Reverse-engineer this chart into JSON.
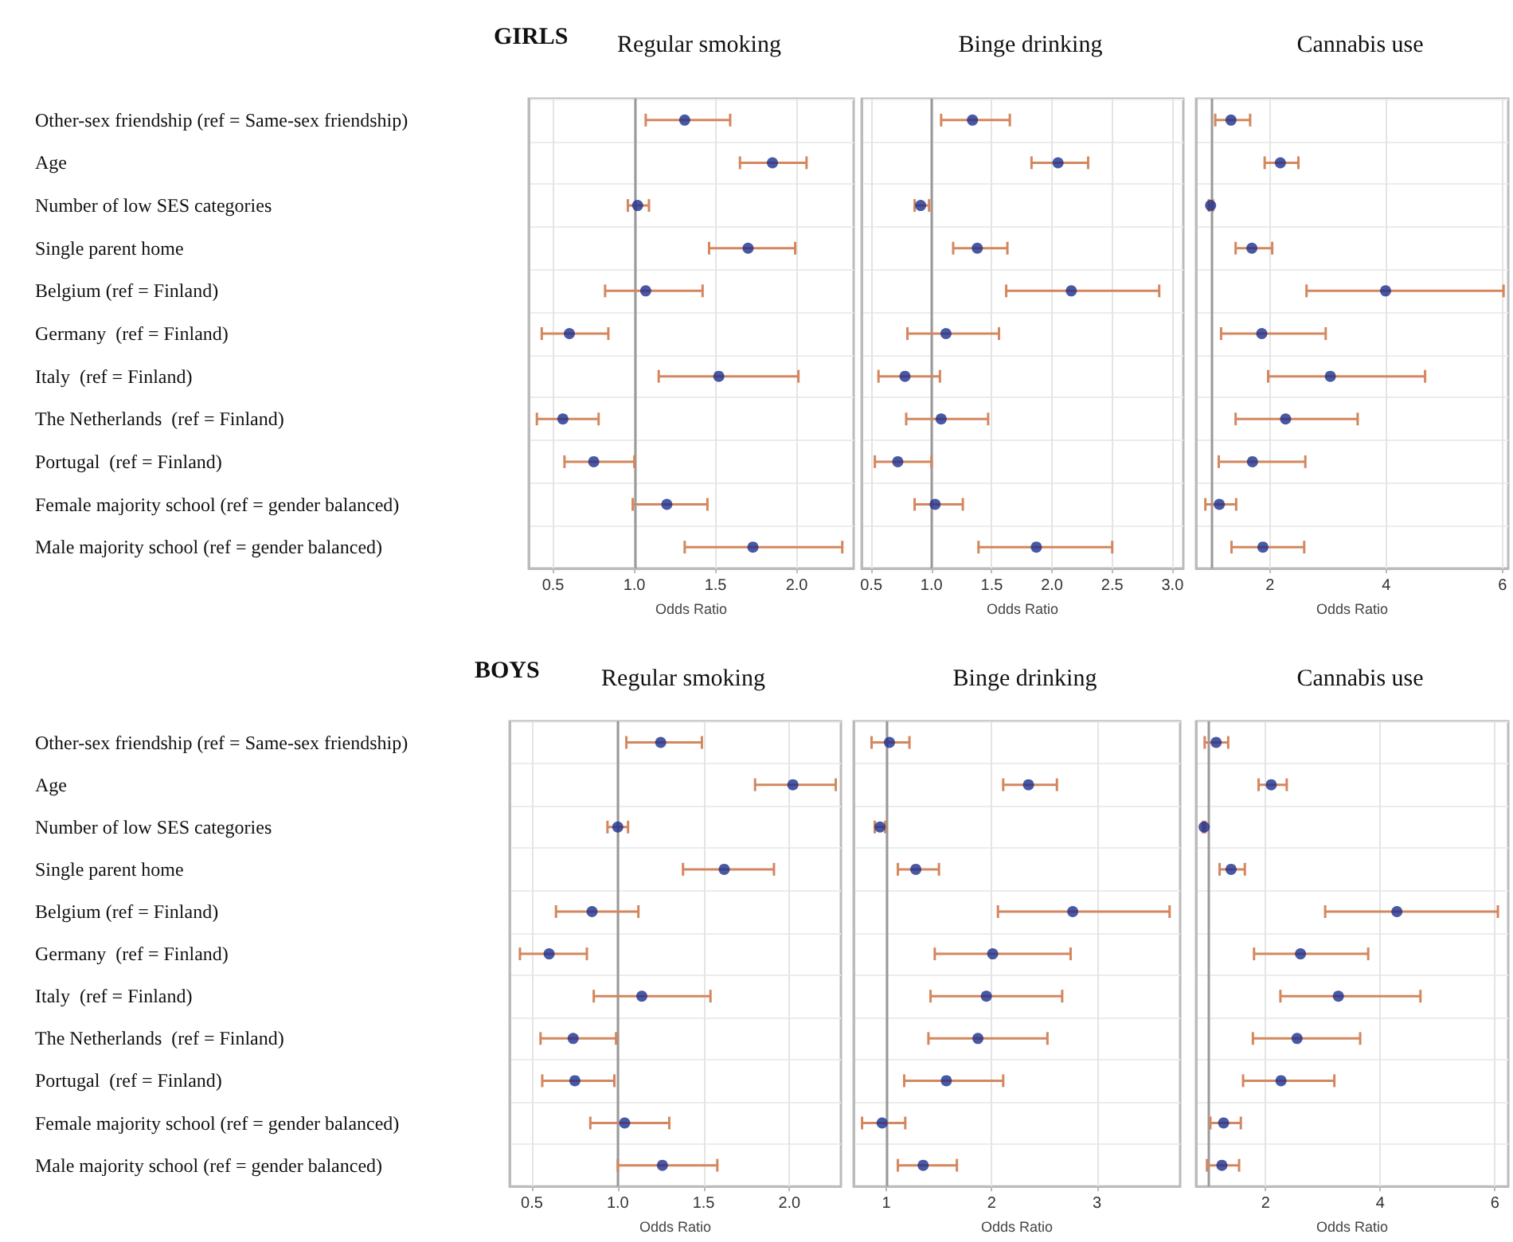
{
  "chart_data": [
    {
      "type": "scatter",
      "orientation": "horizontal",
      "title": "Regular smoking",
      "annotations": [
        "GIRLS"
      ],
      "xlabel": "Odds Ratio",
      "categories": [
        "Other-sex friendship (ref = Same-sex friendship)",
        "Age",
        "Number of low SES categories",
        "Single parent home",
        "Belgium (ref = Finland)",
        "Germany  (ref = Finland)",
        "Italy  (ref = Finland)",
        "The Netherlands  (ref = Finland)",
        "Portugal  (ref = Finland)",
        "Female majority school (ref = gender balanced)",
        "Male majority school (ref = gender balanced)"
      ],
      "values": [
        1.31,
        1.85,
        1.02,
        1.7,
        1.07,
        0.6,
        1.52,
        0.56,
        0.75,
        1.2,
        1.73
      ],
      "errors": [
        [
          1.07,
          1.59
        ],
        [
          1.65,
          2.06
        ],
        [
          0.96,
          1.09
        ],
        [
          1.46,
          1.99
        ],
        [
          0.82,
          1.42
        ],
        [
          0.43,
          0.84
        ],
        [
          1.15,
          2.01
        ],
        [
          0.4,
          0.78
        ],
        [
          0.57,
          1.0
        ],
        [
          0.99,
          1.45
        ],
        [
          1.31,
          2.28
        ]
      ],
      "color": "#1c2e8c",
      "marker": "circle",
      "xlim": [
        0.35,
        2.35
      ],
      "xticks": [
        0.5,
        {
          "value": 1,
          "label": "1.0"
        },
        1.5,
        {
          "value": 2,
          "label": "2.0"
        }
      ],
      "grid": true,
      "ref_lines": [
        {
          "axis": "x",
          "value": 1
        }
      ]
    },
    {
      "type": "scatter",
      "orientation": "horizontal",
      "title": "Binge drinking",
      "xlabel": "Odds Ratio",
      "tick_labels": "x",
      "categories": [
        null,
        null,
        null,
        null,
        null,
        null,
        null,
        null,
        null,
        null,
        null
      ],
      "values": [
        1.34,
        2.05,
        0.91,
        1.38,
        2.16,
        1.12,
        0.78,
        1.08,
        0.72,
        1.03,
        1.87
      ],
      "errors": [
        [
          1.08,
          1.65
        ],
        [
          1.83,
          2.3
        ],
        [
          0.86,
          0.98
        ],
        [
          1.18,
          1.63
        ],
        [
          1.62,
          2.89
        ],
        [
          0.8,
          1.56
        ],
        [
          0.56,
          1.07
        ],
        [
          0.79,
          1.47
        ],
        [
          0.53,
          1.0
        ],
        [
          0.86,
          1.26
        ],
        [
          1.39,
          2.5
        ]
      ],
      "color": "#1c2e8c",
      "marker": "circle",
      "xlim": [
        0.42,
        3.09
      ],
      "xticks": [
        0.5,
        {
          "value": 1,
          "label": "1.0"
        },
        1.5,
        {
          "value": 2,
          "label": "2.0"
        },
        2.5,
        {
          "value": 3,
          "label": "3.0"
        }
      ],
      "grid": true,
      "ref_lines": [
        {
          "axis": "x",
          "value": 1
        }
      ]
    },
    {
      "type": "scatter",
      "orientation": "horizontal",
      "title": "Cannabis use",
      "xlabel": "Odds Ratio",
      "tick_labels": "x",
      "categories": [
        null,
        null,
        null,
        null,
        null,
        null,
        null,
        null,
        null,
        null,
        null
      ],
      "values": [
        1.33,
        2.18,
        0.98,
        1.69,
        3.99,
        1.86,
        3.04,
        2.27,
        1.7,
        1.13,
        1.88
      ],
      "errors": [
        [
          1.06,
          1.66
        ],
        [
          1.91,
          2.49
        ],
        [
          0.95,
          1.02
        ],
        [
          1.41,
          2.04
        ],
        [
          2.63,
          6.02
        ],
        [
          1.16,
          2.96
        ],
        [
          1.97,
          4.67
        ],
        [
          1.41,
          3.51
        ],
        [
          1.12,
          2.61
        ],
        [
          0.89,
          1.42
        ],
        [
          1.34,
          2.59
        ]
      ],
      "color": "#1c2e8c",
      "marker": "circle",
      "xlim": [
        0.73,
        6.1
      ],
      "xticks": [
        2,
        4,
        6
      ],
      "grid": true,
      "ref_lines": [
        {
          "axis": "x",
          "value": 1
        }
      ]
    },
    {
      "type": "scatter",
      "orientation": "horizontal",
      "title": "Regular smoking",
      "annotations": [
        "BOYS"
      ],
      "xlabel": "Odds Ratio",
      "categories": [
        "Other-sex friendship (ref = Same-sex friendship)",
        "Age",
        "Number of low SES categories",
        "Single parent home",
        "Belgium (ref = Finland)",
        "Germany  (ref = Finland)",
        "Italy  (ref = Finland)",
        "The Netherlands  (ref = Finland)",
        "Portugal  (ref = Finland)",
        "Female majority school (ref = gender balanced)",
        "Male majority school (ref = gender balanced)"
      ],
      "values": [
        1.25,
        2.02,
        1.0,
        1.62,
        0.85,
        0.6,
        1.14,
        0.74,
        0.75,
        1.04,
        1.26
      ],
      "errors": [
        [
          1.05,
          1.49
        ],
        [
          1.8,
          2.27
        ],
        [
          0.94,
          1.06
        ],
        [
          1.38,
          1.91
        ],
        [
          0.64,
          1.12
        ],
        [
          0.43,
          0.82
        ],
        [
          0.86,
          1.54
        ],
        [
          0.55,
          0.99
        ],
        [
          0.56,
          0.98
        ],
        [
          0.84,
          1.3
        ],
        [
          1.0,
          1.58
        ]
      ],
      "color": "#1c2e8c",
      "marker": "circle",
      "xlim": [
        0.37,
        2.3
      ],
      "xticks": [
        0.5,
        {
          "value": 1,
          "label": "1.0"
        },
        1.5,
        {
          "value": 2,
          "label": "2.0"
        }
      ],
      "grid": true,
      "ref_lines": [
        {
          "axis": "x",
          "value": 1
        }
      ]
    },
    {
      "type": "scatter",
      "orientation": "horizontal",
      "title": "Binge drinking",
      "xlabel": "Odds Ratio",
      "tick_labels": "x",
      "categories": [
        null,
        null,
        null,
        null,
        null,
        null,
        null,
        null,
        null,
        null,
        null
      ],
      "values": [
        1.03,
        2.35,
        0.94,
        1.28,
        2.77,
        2.01,
        1.95,
        1.87,
        1.57,
        0.96,
        1.35
      ],
      "errors": [
        [
          0.86,
          1.22
        ],
        [
          2.11,
          2.62
        ],
        [
          0.89,
          0.99
        ],
        [
          1.11,
          1.5
        ],
        [
          2.06,
          3.69
        ],
        [
          1.46,
          2.75
        ],
        [
          1.42,
          2.67
        ],
        [
          1.4,
          2.53
        ],
        [
          1.17,
          2.11
        ],
        [
          0.77,
          1.18
        ],
        [
          1.11,
          1.67
        ]
      ],
      "color": "#1c2e8c",
      "marker": "circle",
      "xlim": [
        0.69,
        3.79
      ],
      "xticks": [
        1,
        2,
        3
      ],
      "grid": true,
      "ref_lines": [
        {
          "axis": "x",
          "value": 1
        }
      ]
    },
    {
      "type": "scatter",
      "orientation": "horizontal",
      "title": "Cannabis use",
      "xlabel": "Odds Ratio",
      "tick_labels": "x",
      "categories": [
        null,
        null,
        null,
        null,
        null,
        null,
        null,
        null,
        null,
        null,
        null
      ],
      "values": [
        1.14,
        2.1,
        0.93,
        1.4,
        4.29,
        2.61,
        3.27,
        2.55,
        2.27,
        1.27,
        1.24
      ],
      "errors": [
        [
          0.94,
          1.35
        ],
        [
          1.88,
          2.37
        ],
        [
          0.91,
          0.95
        ],
        [
          1.2,
          1.64
        ],
        [
          3.04,
          6.05
        ],
        [
          1.8,
          3.79
        ],
        [
          2.26,
          4.7
        ],
        [
          1.78,
          3.65
        ],
        [
          1.61,
          3.2
        ],
        [
          1.04,
          1.57
        ],
        [
          0.98,
          1.54
        ]
      ],
      "color": "#1c2e8c",
      "marker": "circle",
      "xlim": [
        0.79,
        6.23
      ],
      "xticks": [
        2,
        4,
        6
      ],
      "grid": true,
      "ref_lines": [
        {
          "axis": "x",
          "value": 1
        }
      ]
    }
  ]
}
